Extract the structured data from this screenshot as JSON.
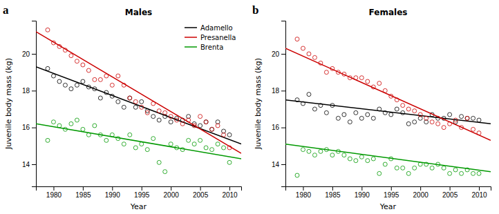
{
  "chart_data": [
    {
      "type": "scatter",
      "title": "Males",
      "annotations": [
        "a"
      ],
      "x_label": "Year",
      "y_label": "Juvenile body mass (kg)",
      "xlim": [
        1977,
        2012
      ],
      "ylim": [
        12.8,
        21.8
      ],
      "xticks": [
        1980,
        1985,
        1990,
        1995,
        2000,
        2005,
        2010
      ],
      "yticks": [
        14,
        16,
        18,
        20
      ],
      "legend": "upper right",
      "series": [
        {
          "type": "scatter",
          "marker": "circle",
          "color": "#000000",
          "x": [
            1979,
            1980,
            1981,
            1982,
            1983,
            1984,
            1985,
            1986,
            1987,
            1988,
            1989,
            1990,
            1991,
            1992,
            1993,
            1994,
            1995,
            1996,
            1997,
            1998,
            1999,
            2000,
            2001,
            2002,
            2003,
            2004,
            2005,
            2006,
            2007,
            2008,
            2009,
            2010
          ],
          "values": [
            19.2,
            18.8,
            18.5,
            18.3,
            18.1,
            18.3,
            18.5,
            18.2,
            18.1,
            17.6,
            17.9,
            17.7,
            17.4,
            17.1,
            17.6,
            17.1,
            17.4,
            16.9,
            16.6,
            16.4,
            16.6,
            16.3,
            16.5,
            16.4,
            16.6,
            16.2,
            16.1,
            16.3,
            15.9,
            16.3,
            15.8,
            15.6
          ]
        },
        {
          "type": "line",
          "name": "Adamello",
          "color": "#000000",
          "x": [
            1977,
            2012
          ],
          "values": [
            19.3,
            15.1
          ]
        },
        {
          "type": "scatter",
          "marker": "circle",
          "color": "#cc0000",
          "x": [
            1979,
            1980,
            1981,
            1982,
            1983,
            1984,
            1985,
            1986,
            1987,
            1988,
            1989,
            1990,
            1991,
            1992,
            1993,
            1994,
            1995,
            1996,
            1997,
            1998,
            1999,
            2000,
            2001,
            2002,
            2003,
            2004,
            2005,
            2006,
            2007,
            2008,
            2009,
            2010
          ],
          "values": [
            21.3,
            20.6,
            20.4,
            20.2,
            19.9,
            19.6,
            19.4,
            19.1,
            18.6,
            18.6,
            18.8,
            18.3,
            18.8,
            18.3,
            17.6,
            17.4,
            17.1,
            16.8,
            17.3,
            16.9,
            16.8,
            16.6,
            16.4,
            16.2,
            16.4,
            16.1,
            16.6,
            16.3,
            15.9,
            16.1,
            15.6,
            14.9
          ]
        },
        {
          "type": "line",
          "name": "Presanella",
          "color": "#cc0000",
          "x": [
            1977,
            2012
          ],
          "values": [
            21.2,
            14.6
          ]
        },
        {
          "type": "scatter",
          "marker": "circle",
          "color": "#009900",
          "x": [
            1979,
            1980,
            1981,
            1982,
            1983,
            1984,
            1985,
            1986,
            1987,
            1988,
            1989,
            1990,
            1991,
            1992,
            1993,
            1994,
            1995,
            1996,
            1997,
            1998,
            1999,
            2000,
            2001,
            2002,
            2003,
            2004,
            2005,
            2006,
            2007,
            2008,
            2009,
            2010
          ],
          "values": [
            15.3,
            16.3,
            16.1,
            15.9,
            16.2,
            16.4,
            15.9,
            15.6,
            16.1,
            15.6,
            15.3,
            15.6,
            15.4,
            15.1,
            15.6,
            14.9,
            15.1,
            14.8,
            15.4,
            14.1,
            13.6,
            15.1,
            14.9,
            14.8,
            15.3,
            15.1,
            15.3,
            14.9,
            14.8,
            15.1,
            14.9,
            14.1
          ]
        },
        {
          "type": "line",
          "name": "Brenta",
          "color": "#009900",
          "x": [
            1977,
            2012
          ],
          "values": [
            16.2,
            14.3
          ]
        }
      ]
    },
    {
      "type": "scatter",
      "title": "Females",
      "annotations": [
        "b"
      ],
      "x_label": "Year",
      "y_label": "Juvenile body mass (kg)",
      "xlim": [
        1977,
        2012
      ],
      "ylim": [
        12.8,
        21.8
      ],
      "xticks": [
        1980,
        1985,
        1990,
        1995,
        2000,
        2005,
        2010
      ],
      "yticks": [
        14,
        16,
        18,
        20
      ],
      "series": [
        {
          "type": "scatter",
          "marker": "circle",
          "color": "#000000",
          "x": [
            1979,
            1980,
            1981,
            1982,
            1983,
            1984,
            1985,
            1986,
            1987,
            1988,
            1989,
            1990,
            1991,
            1992,
            1993,
            1994,
            1995,
            1996,
            1997,
            1998,
            1999,
            2000,
            2001,
            2002,
            2003,
            2004,
            2005,
            2006,
            2007,
            2008,
            2009,
            2010
          ],
          "values": [
            17.5,
            17.3,
            17.8,
            17.0,
            17.2,
            16.8,
            17.2,
            16.5,
            16.7,
            16.3,
            16.8,
            16.5,
            16.7,
            16.5,
            17.0,
            16.8,
            16.7,
            17.0,
            16.8,
            16.2,
            16.3,
            16.5,
            16.3,
            16.7,
            16.5,
            16.5,
            16.7,
            16.3,
            16.6,
            16.5,
            16.5,
            16.4
          ]
        },
        {
          "type": "line",
          "color": "#000000",
          "x": [
            1977,
            2012
          ],
          "values": [
            17.5,
            16.2
          ]
        },
        {
          "type": "scatter",
          "marker": "circle",
          "color": "#cc0000",
          "x": [
            1979,
            1980,
            1981,
            1982,
            1983,
            1984,
            1985,
            1986,
            1987,
            1988,
            1989,
            1990,
            1991,
            1992,
            1993,
            1994,
            1995,
            1996,
            1997,
            1998,
            1999,
            2000,
            2001,
            2002,
            2003,
            2004,
            2005,
            2006,
            2007,
            2008,
            2009,
            2010
          ],
          "values": [
            20.8,
            20.3,
            20.0,
            19.8,
            19.5,
            19.0,
            19.2,
            19.0,
            18.9,
            18.7,
            18.7,
            18.7,
            18.5,
            18.2,
            18.4,
            18.0,
            17.7,
            17.5,
            17.2,
            17.0,
            16.9,
            16.7,
            16.5,
            16.3,
            16.2,
            16.0,
            16.2,
            16.4,
            16.0,
            16.5,
            15.9,
            15.7
          ]
        },
        {
          "type": "line",
          "color": "#cc0000",
          "x": [
            1977,
            2012
          ],
          "values": [
            20.3,
            15.3
          ]
        },
        {
          "type": "scatter",
          "marker": "circle",
          "color": "#009900",
          "x": [
            1979,
            1980,
            1981,
            1982,
            1983,
            1984,
            1985,
            1986,
            1987,
            1988,
            1989,
            1990,
            1991,
            1992,
            1993,
            1994,
            1995,
            1996,
            1997,
            1998,
            1999,
            2000,
            2001,
            2002,
            2003,
            2004,
            2005,
            2006,
            2007,
            2008,
            2009,
            2010
          ],
          "values": [
            13.4,
            14.8,
            14.7,
            14.5,
            14.7,
            14.8,
            14.5,
            14.7,
            14.5,
            14.3,
            14.2,
            14.4,
            14.2,
            14.3,
            13.5,
            14.0,
            14.3,
            13.8,
            13.8,
            13.5,
            13.8,
            14.0,
            14.0,
            13.8,
            14.0,
            13.8,
            13.5,
            13.7,
            13.5,
            13.7,
            13.5,
            13.5
          ]
        },
        {
          "type": "line",
          "color": "#009900",
          "x": [
            1977,
            2012
          ],
          "values": [
            15.1,
            13.6
          ]
        }
      ]
    }
  ]
}
